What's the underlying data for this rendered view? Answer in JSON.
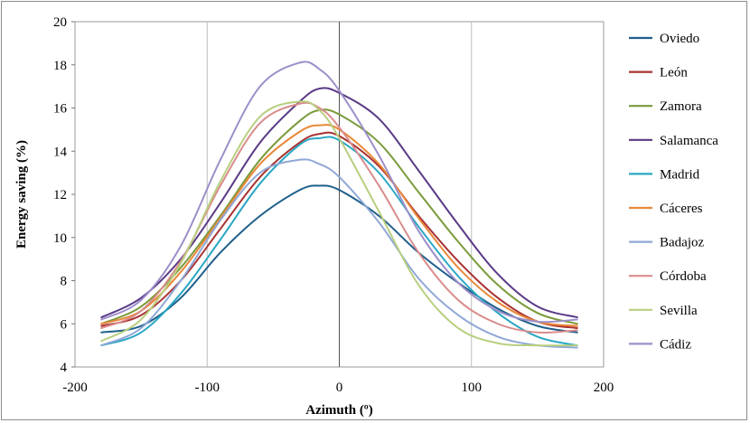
{
  "chart_data": {
    "type": "line",
    "title": "",
    "xlabel": "Azimuth (º)",
    "ylabel": "Energy saving (%)",
    "xlim": [
      -200,
      200
    ],
    "ylim": [
      4,
      20
    ],
    "x_ticks": [
      -200,
      -100,
      0,
      100,
      200
    ],
    "y_ticks": [
      4,
      6,
      8,
      10,
      12,
      14,
      16,
      18,
      20
    ],
    "grid": true,
    "legend_position": "right",
    "x": [
      -180,
      -150,
      -120,
      -90,
      -60,
      -30,
      -15,
      0,
      30,
      60,
      90,
      120,
      150,
      180
    ],
    "series": [
      {
        "name": "Oviedo",
        "color": "#1f5f8b",
        "values": [
          5.6,
          5.9,
          7.2,
          9.3,
          11.0,
          12.2,
          12.4,
          12.2,
          11.0,
          9.3,
          7.9,
          6.7,
          5.9,
          5.6
        ]
      },
      {
        "name": "León",
        "color": "#a83232",
        "values": [
          5.9,
          6.4,
          8.0,
          10.4,
          12.8,
          14.4,
          14.8,
          14.7,
          13.3,
          11.0,
          8.9,
          7.2,
          6.1,
          5.8
        ]
      },
      {
        "name": "Zamora",
        "color": "#7a9a3a",
        "values": [
          6.0,
          6.8,
          8.6,
          11.0,
          13.6,
          15.4,
          15.9,
          15.7,
          14.4,
          12.1,
          9.8,
          7.8,
          6.5,
          6.0
        ]
      },
      {
        "name": "Salamanca",
        "color": "#5a3a86",
        "values": [
          6.3,
          7.2,
          9.0,
          11.6,
          14.4,
          16.3,
          16.9,
          16.7,
          15.5,
          13.1,
          10.6,
          8.3,
          6.8,
          6.3
        ]
      },
      {
        "name": "Madrid",
        "color": "#2aa7c4",
        "values": [
          5.0,
          5.6,
          7.4,
          9.9,
          12.5,
          14.3,
          14.6,
          14.5,
          13.0,
          10.5,
          8.2,
          6.5,
          5.4,
          5.0
        ]
      },
      {
        "name": "Cáceres",
        "color": "#e8883a",
        "values": [
          6.0,
          6.6,
          8.4,
          10.9,
          13.4,
          14.9,
          15.2,
          15.0,
          13.4,
          10.9,
          8.6,
          7.0,
          6.1,
          5.9
        ]
      },
      {
        "name": "Badajoz",
        "color": "#8fa8d6",
        "values": [
          5.0,
          5.8,
          8.0,
          10.8,
          13.0,
          13.6,
          13.4,
          12.8,
          10.7,
          8.1,
          6.4,
          5.4,
          5.0,
          4.9
        ]
      },
      {
        "name": "Córdoba",
        "color": "#d98c8c",
        "values": [
          5.8,
          6.6,
          8.9,
          12.4,
          15.3,
          16.2,
          16.0,
          15.1,
          12.4,
          9.3,
          7.1,
          6.0,
          5.6,
          5.7
        ]
      },
      {
        "name": "Sevilla",
        "color": "#b8cf7f",
        "values": [
          5.2,
          6.2,
          8.8,
          12.6,
          15.6,
          16.3,
          15.9,
          14.6,
          11.2,
          7.8,
          5.8,
          5.1,
          5.0,
          5.0
        ]
      },
      {
        "name": "Cádiz",
        "color": "#9d8fc9",
        "values": [
          6.2,
          7.1,
          9.6,
          13.6,
          17.0,
          18.1,
          17.8,
          16.8,
          13.8,
          10.3,
          7.9,
          6.6,
          6.1,
          6.2
        ]
      }
    ]
  }
}
